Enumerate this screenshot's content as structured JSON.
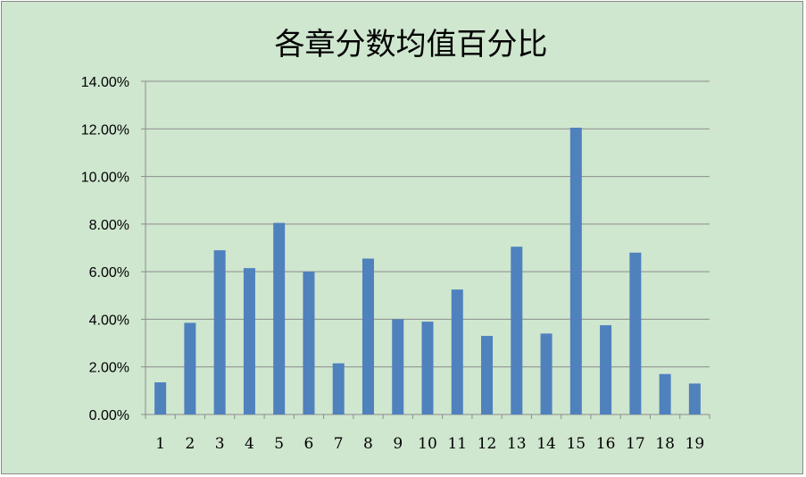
{
  "chart_data": {
    "type": "bar",
    "title": "各章分数均值百分比",
    "xlabel": "",
    "ylabel": "",
    "categories": [
      "1",
      "2",
      "3",
      "4",
      "5",
      "6",
      "7",
      "8",
      "9",
      "10",
      "11",
      "12",
      "13",
      "14",
      "15",
      "16",
      "17",
      "18",
      "19"
    ],
    "series": [
      {
        "values": [
          1.35,
          3.85,
          6.9,
          6.15,
          8.05,
          6.0,
          2.15,
          6.55,
          4.0,
          3.9,
          5.25,
          3.3,
          7.05,
          3.4,
          12.05,
          3.75,
          6.8,
          1.7,
          1.3
        ],
        "color": "#4f81bd"
      }
    ],
    "ylim": [
      0,
      14
    ],
    "yticks": [
      "0.00%",
      "2.00%",
      "4.00%",
      "6.00%",
      "8.00%",
      "10.00%",
      "12.00%",
      "14.00%"
    ],
    "y_tick_values": [
      0,
      2,
      4,
      6,
      8,
      10,
      12,
      14
    ],
    "y_unit": "%",
    "grid": true,
    "legend": "none",
    "colors": {
      "background": "#cfe6cf",
      "gridline": "#8c8c8c",
      "bar": "#4f81bd"
    }
  }
}
